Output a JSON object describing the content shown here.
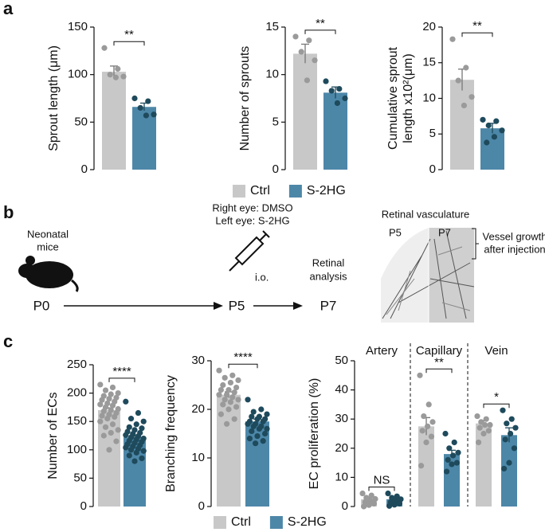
{
  "panels": [
    "a",
    "b",
    "c"
  ],
  "diagram": {
    "mouse_label": [
      "Neonatal",
      "mice"
    ],
    "p0": "P0",
    "treatment": [
      "Right eye: DMSO",
      "Left eye: S-2HG"
    ],
    "route": "i.o.",
    "p5": "P5",
    "analysis": [
      "Retinal",
      "analysis"
    ],
    "p7": "P7",
    "image_title": "Retinal vasculature",
    "image_labels": [
      "P5",
      "P7"
    ],
    "growth_note": [
      "Vessel growth",
      "after injection"
    ]
  },
  "chart_data": [
    {
      "type": "bar",
      "ylabel": "Sprout length (μm)",
      "categories": [
        null
      ],
      "ylim": [
        0,
        150
      ],
      "yticks": [
        0,
        50,
        100,
        150
      ],
      "significance": [
        "**"
      ],
      "series": [
        {
          "name": "Ctrl",
          "color": "#c8c8c8",
          "dot_color": "#9a9a9a",
          "values": [
            103
          ],
          "errors": [
            6
          ],
          "points": [
            [
              128,
              106,
              100,
              98,
              97
            ]
          ]
        },
        {
          "name": "S-2HG",
          "color": "#4d87a8",
          "dot_color": "#1e4a5c",
          "values": [
            66
          ],
          "errors": [
            4
          ],
          "points": [
            [
              75,
              72,
              65,
              58,
              57
            ]
          ]
        }
      ]
    },
    {
      "type": "bar",
      "ylabel": "Number of sprouts",
      "categories": [
        null
      ],
      "ylim": [
        0,
        15
      ],
      "yticks": [
        0,
        5,
        10,
        15
      ],
      "significance": [
        "**"
      ],
      "series": [
        {
          "name": "Ctrl",
          "color": "#c8c8c8",
          "dot_color": "#9a9a9a",
          "values": [
            12.2
          ],
          "errors": [
            1.0
          ],
          "points": [
            [
              14,
              13.6,
              12.4,
              11.5,
              9.4
            ]
          ]
        },
        {
          "name": "S-2HG",
          "color": "#4d87a8",
          "dot_color": "#1e4a5c",
          "values": [
            8.1
          ],
          "errors": [
            0.6
          ],
          "points": [
            [
              9.3,
              8.5,
              8.3,
              7.5,
              7
            ]
          ]
        }
      ]
    },
    {
      "type": "bar",
      "ylabel": [
        "Cumulative sprout",
        "length x10²(μm)"
      ],
      "categories": [
        null
      ],
      "ylim": [
        0,
        20
      ],
      "yticks": [
        0,
        5,
        10,
        15,
        20
      ],
      "significance": [
        "**"
      ],
      "series": [
        {
          "name": "Ctrl",
          "color": "#c8c8c8",
          "dot_color": "#9a9a9a",
          "values": [
            12.6
          ],
          "errors": [
            1.5
          ],
          "points": [
            [
              18.3,
              14.3,
              12.5,
              10.2,
              9
            ]
          ]
        },
        {
          "name": "S-2HG",
          "color": "#4d87a8",
          "dot_color": "#1e4a5c",
          "values": [
            5.8
          ],
          "errors": [
            0.7
          ],
          "points": [
            [
              7,
              6.8,
              6.2,
              5.5,
              4.6,
              3.8
            ]
          ]
        }
      ]
    },
    {
      "type": "bar",
      "ylabel": "Number of ECs",
      "categories": [
        null
      ],
      "ylim": [
        0,
        250
      ],
      "yticks": [
        0,
        50,
        100,
        150,
        200,
        250
      ],
      "significance": [
        "****"
      ],
      "series": [
        {
          "name": "Ctrl",
          "color": "#c8c8c8",
          "dot_color": "#9a9a9a",
          "values": [
            170
          ],
          "errors": [
            4
          ],
          "points": [
            [
              215,
              210,
              205,
              200,
              198,
              195,
              192,
              190,
              188,
              185,
              182,
              180,
              178,
              175,
              172,
              170,
              168,
              165,
              162,
              160,
              158,
              155,
              150,
              145,
              140,
              135,
              130,
              125,
              115,
              100
            ]
          ]
        },
        {
          "name": "S-2HG",
          "color": "#4d87a8",
          "dot_color": "#1e4a5c",
          "values": [
            122
          ],
          "errors": [
            3
          ],
          "points": [
            [
              185,
              165,
              155,
              150,
              145,
              140,
              138,
              135,
              132,
              130,
              128,
              126,
              124,
              122,
              120,
              118,
              116,
              114,
              112,
              110,
              108,
              106,
              104,
              102,
              100,
              98,
              95,
              90,
              85,
              80
            ]
          ]
        }
      ]
    },
    {
      "type": "bar",
      "ylabel": "Branching frequency",
      "categories": [
        null
      ],
      "ylim": [
        0,
        30
      ],
      "yticks": [
        0,
        10,
        20,
        30
      ],
      "significance": [
        "****"
      ],
      "series": [
        {
          "name": "Ctrl",
          "color": "#c8c8c8",
          "dot_color": "#9a9a9a",
          "values": [
            23
          ],
          "errors": [
            0.6
          ],
          "points": [
            [
              28,
              27,
              26.5,
              26,
              25.5,
              25,
              24.5,
              24,
              24,
              23.5,
              23,
              23,
              22.5,
              22,
              22,
              21.5,
              21,
              20.5,
              20,
              19,
              18,
              17
            ]
          ]
        },
        {
          "name": "S-2HG",
          "color": "#4d87a8",
          "dot_color": "#1e4a5c",
          "values": [
            17.5
          ],
          "errors": [
            0.5
          ],
          "points": [
            [
              22,
              20,
              19.5,
              19,
              18.5,
              18.5,
              18,
              18,
              17.5,
              17.5,
              17,
              17,
              16.5,
              16.5,
              16,
              16,
              15.5,
              15,
              14.5,
              14,
              13.5,
              13
            ]
          ]
        }
      ]
    },
    {
      "type": "bar",
      "ylabel": "EC proliferation (%)",
      "categories": [
        "Artery",
        "Capillary",
        "Vein"
      ],
      "ylim": [
        0,
        50
      ],
      "yticks": [
        0,
        10,
        20,
        30,
        40,
        50
      ],
      "significance": [
        "NS",
        "**",
        "*"
      ],
      "series": [
        {
          "name": "Ctrl",
          "color": "#c8c8c8",
          "dot_color": "#9a9a9a",
          "values": [
            2.5,
            27.5,
            28.5
          ],
          "errors": [
            0.5,
            3,
            1
          ],
          "points": [
            [
              4.5,
              3.8,
              3,
              2.6,
              2,
              1.5,
              1,
              0.5,
              0
            ],
            [
              45,
              35,
              31,
              29,
              27.5,
              26,
              24,
              22,
              14
            ],
            [
              31,
              30,
              29,
              28,
              28,
              27,
              26,
              25,
              22
            ]
          ]
        },
        {
          "name": "S-2HG",
          "color": "#4d87a8",
          "dot_color": "#1e4a5c",
          "values": [
            2.5,
            18,
            24.5
          ],
          "errors": [
            0.5,
            1.3,
            2.5
          ],
          "points": [
            [
              4.5,
              3.5,
              3,
              2.5,
              2,
              1.5,
              1,
              0.6,
              0.2
            ],
            [
              25,
              22,
              20,
              18.5,
              17.5,
              16,
              15,
              14.5,
              12
            ],
            [
              33,
              30,
              28.5,
              27,
              25,
              23,
              20,
              15,
              13
            ]
          ]
        }
      ]
    }
  ]
}
